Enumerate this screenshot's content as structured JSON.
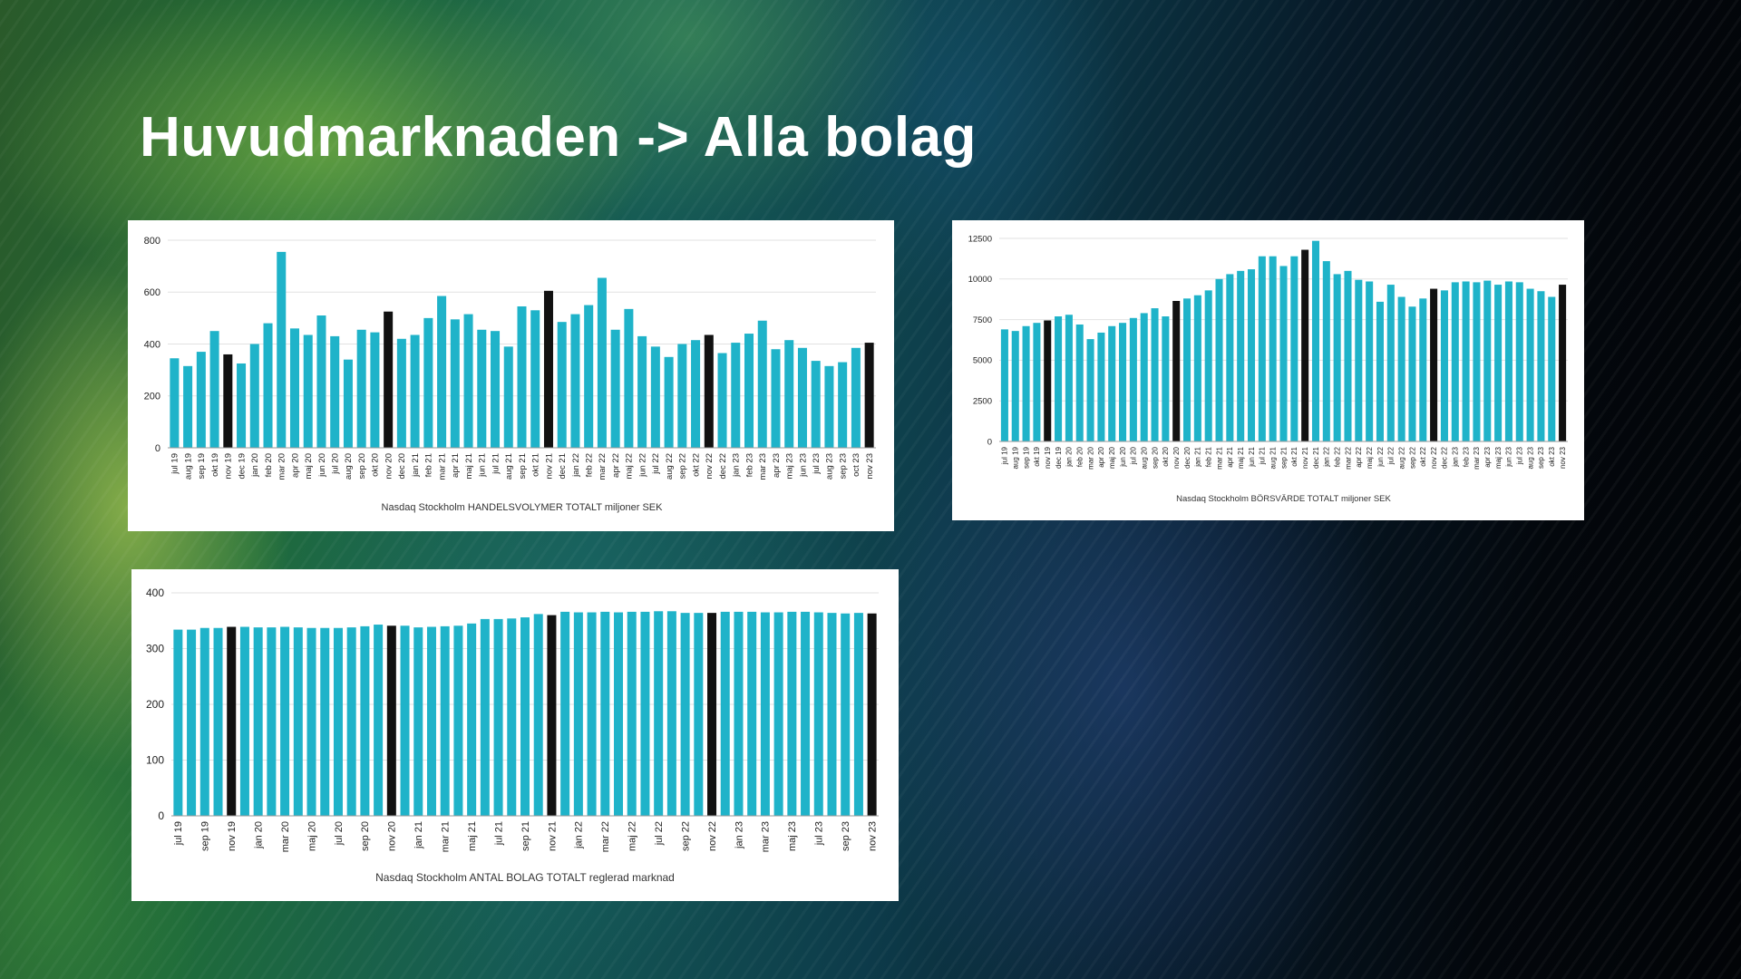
{
  "slide": {
    "title": "Huvudmarknaden -> Alla bolag"
  },
  "colors": {
    "bar": "#1fb3c9",
    "highlight": "#111111",
    "grid": "#e2e2e2"
  },
  "chart_data": [
    {
      "type": "bar",
      "title": "",
      "caption": "Nasdaq Stockholm HANDELSVOLYMER TOTALT miljoner SEK",
      "xlabel": "",
      "ylabel": "",
      "ylim": [
        0,
        800
      ],
      "yticks": [
        0,
        200,
        400,
        600,
        800
      ],
      "grid": true,
      "categories": [
        "jul 19",
        "aug 19",
        "sep 19",
        "okt 19",
        "nov 19",
        "dec 19",
        "jan 20",
        "feb 20",
        "mar 20",
        "apr 20",
        "maj 20",
        "jun 20",
        "jul 20",
        "aug 20",
        "sep 20",
        "okt 20",
        "nov 20",
        "dec 20",
        "jan 21",
        "feb 21",
        "mar 21",
        "apr 21",
        "maj 21",
        "jun 21",
        "jul 21",
        "aug 21",
        "sep 21",
        "okt 21",
        "nov 21",
        "dec 21",
        "jan 22",
        "feb 22",
        "mar 22",
        "apr 22",
        "maj 22",
        "jun 22",
        "jul 22",
        "aug 22",
        "sep 22",
        "okt 22",
        "nov 22",
        "dec 22",
        "jan 23",
        "feb 23",
        "mar 23",
        "apr 23",
        "maj 23",
        "jun 23",
        "jul 23",
        "aug 23",
        "sep 23",
        "oct 23",
        "nov 23"
      ],
      "values": [
        345,
        315,
        370,
        450,
        360,
        325,
        400,
        480,
        755,
        460,
        435,
        510,
        430,
        340,
        455,
        445,
        525,
        420,
        435,
        500,
        585,
        495,
        515,
        455,
        450,
        390,
        545,
        530,
        605,
        485,
        515,
        550,
        655,
        455,
        535,
        430,
        390,
        350,
        400,
        415,
        435,
        365,
        405,
        440,
        490,
        380,
        415,
        385,
        335,
        315,
        330,
        385,
        405
      ],
      "highlighted": [
        "nov 19",
        "nov 20",
        "nov 21",
        "nov 22",
        "nov 23"
      ]
    },
    {
      "type": "bar",
      "title": "",
      "caption": "Nasdaq Stockholm BÖRSVÄRDE TOTALT miljoner SEK",
      "xlabel": "",
      "ylabel": "",
      "ylim": [
        0,
        12500
      ],
      "yticks": [
        0,
        2500,
        5000,
        7500,
        10000,
        12500
      ],
      "grid": true,
      "categories": [
        "jul 19",
        "aug 19",
        "sep 19",
        "okt 19",
        "nov 19",
        "dec 19",
        "jan 20",
        "feb 20",
        "mar 20",
        "apr 20",
        "maj 20",
        "jun 20",
        "jul 20",
        "aug 20",
        "sep 20",
        "okt 20",
        "nov 20",
        "dec 20",
        "jan 21",
        "feb 21",
        "mar 21",
        "apr 21",
        "maj 21",
        "jun 21",
        "jul 21",
        "aug 21",
        "sep 21",
        "okt 21",
        "nov 21",
        "dec 21",
        "jan 22",
        "feb 22",
        "mar 22",
        "apr 22",
        "maj 22",
        "jun 22",
        "jul 22",
        "aug 22",
        "sep 22",
        "okt 22",
        "nov 22",
        "dec 22",
        "jan 23",
        "feb 23",
        "mar 23",
        "apr 23",
        "maj 23",
        "jun 23",
        "jul 23",
        "aug 23",
        "sep 23",
        "okt 23",
        "nov 23"
      ],
      "values": [
        6900,
        6800,
        7100,
        7300,
        7450,
        7700,
        7800,
        7200,
        6300,
        6700,
        7100,
        7300,
        7600,
        7900,
        8200,
        7700,
        8650,
        8800,
        9000,
        9300,
        10000,
        10300,
        10500,
        10600,
        11400,
        11400,
        10800,
        11400,
        11800,
        12350,
        11100,
        10300,
        10500,
        9950,
        9850,
        8600,
        9650,
        8900,
        8300,
        8800,
        9400,
        9300,
        9800,
        9850,
        9800,
        9900,
        9650,
        9850,
        9800,
        9400,
        9250,
        8900,
        9650
      ],
      "highlighted": [
        "nov 19",
        "nov 20",
        "nov 21",
        "nov 22",
        "nov 23"
      ]
    },
    {
      "type": "bar",
      "title": "",
      "caption": "Nasdaq Stockholm ANTAL BOLAG TOTALT reglerad marknad",
      "xlabel": "",
      "ylabel": "",
      "ylim": [
        0,
        400
      ],
      "yticks": [
        0,
        100,
        200,
        300,
        400
      ],
      "grid": true,
      "categories": [
        "jul 19",
        "aug 19",
        "sep 19",
        "okt 19",
        "nov 19",
        "dec 19",
        "jan 20",
        "feb 20",
        "mar 20",
        "apr 20",
        "maj 20",
        "jun 20",
        "jul 20",
        "aug 20",
        "sep 20",
        "okt 20",
        "nov 20",
        "dec 20",
        "jan 21",
        "feb 21",
        "mar 21",
        "apr 21",
        "maj 21",
        "jun 21",
        "jul 21",
        "aug 21",
        "sep 21",
        "okt 21",
        "nov 21",
        "dec 21",
        "jan 22",
        "feb 22",
        "mar 22",
        "apr 22",
        "maj 22",
        "jun 22",
        "jul 22",
        "aug 22",
        "sep 22",
        "okt 22",
        "nov 22",
        "dec 22",
        "jan 23",
        "feb 23",
        "mar 23",
        "apr 23",
        "maj 23",
        "jun 23",
        "jul 23",
        "aug 23",
        "sep 23",
        "okt 23",
        "nov 23"
      ],
      "tick_labels": [
        "jul 19",
        "",
        "sep 19",
        "",
        "nov 19",
        "",
        "jan 20",
        "",
        "mar 20",
        "",
        "maj 20",
        "",
        "jul 20",
        "",
        "sep 20",
        "",
        "nov 20",
        "",
        "jan 21",
        "",
        "mar 21",
        "",
        "maj 21",
        "",
        "jul 21",
        "",
        "sep 21",
        "",
        "nov 21",
        "",
        "jan 22",
        "",
        "mar 22",
        "",
        "maj 22",
        "",
        "jul 22",
        "",
        "sep 22",
        "",
        "nov 22",
        "",
        "jan 23",
        "",
        "mar 23",
        "",
        "maj 23",
        "",
        "jul 23",
        "",
        "sep 23",
        "",
        "nov 23"
      ],
      "values": [
        334,
        334,
        337,
        337,
        339,
        339,
        338,
        338,
        339,
        338,
        337,
        337,
        337,
        338,
        340,
        343,
        341,
        341,
        338,
        339,
        340,
        341,
        345,
        353,
        353,
        354,
        356,
        362,
        360,
        366,
        365,
        365,
        366,
        365,
        366,
        366,
        367,
        367,
        364,
        364,
        364,
        366,
        366,
        366,
        365,
        365,
        366,
        366,
        365,
        364,
        363,
        364,
        363
      ],
      "highlighted": [
        "nov 19",
        "nov 20",
        "nov 21",
        "nov 22",
        "nov 23"
      ]
    }
  ]
}
